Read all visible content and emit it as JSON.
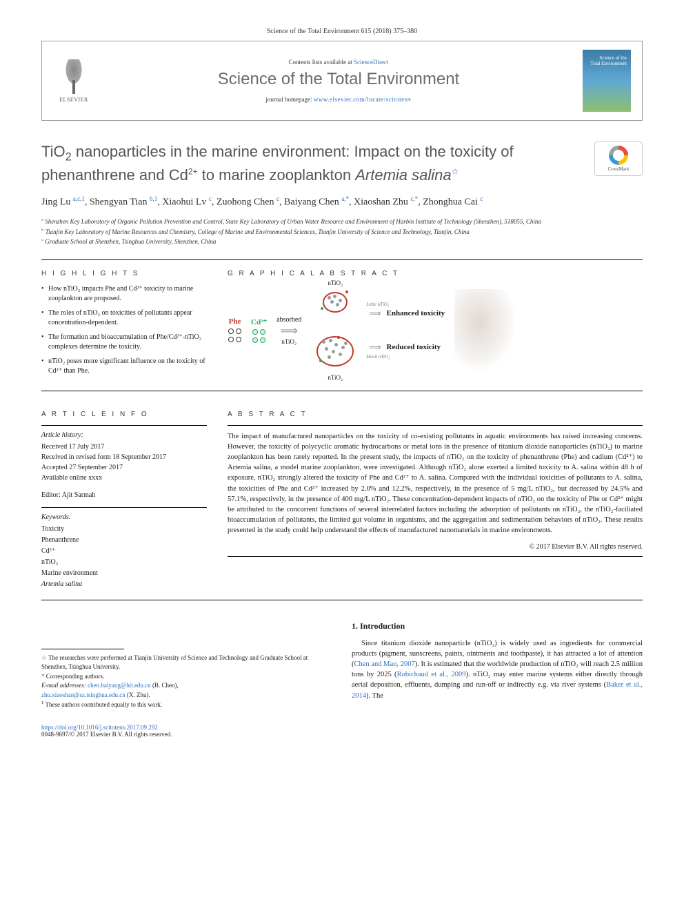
{
  "journal_ref": "Science of the Total Environment 615 (2018) 375–380",
  "header": {
    "contents_prefix": "Contents lists available at ",
    "contents_link": "ScienceDirect",
    "journal_title": "Science of the Total Environment",
    "homepage_prefix": "journal homepage: ",
    "homepage_url": "www.elsevier.com/locate/scitotenv",
    "elsevier_label": "ELSEVIER",
    "cover_line1": "Science of the",
    "cover_line2": "Total Environment",
    "crossmark_label": "CrossMark"
  },
  "title": {
    "line1_pre": "TiO",
    "line1_sub": "2",
    "line1_post": " nanoparticles in the marine environment: Impact on the toxicity of",
    "line2_pre": "phenanthrene and Cd",
    "line2_sup": "2+",
    "line2_post": " to marine zooplankton ",
    "line2_italic": "Artemia salina",
    "star": "☆"
  },
  "authors": [
    {
      "name": "Jing Lu",
      "aff": "a,c,1"
    },
    {
      "name": "Shengyan Tian",
      "aff": "b,1"
    },
    {
      "name": "Xiaohui Lv",
      "aff": "c"
    },
    {
      "name": "Zuohong Chen",
      "aff": "c"
    },
    {
      "name": "Baiyang Chen",
      "aff": "a,*"
    },
    {
      "name": "Xiaoshan Zhu",
      "aff": "c,*"
    },
    {
      "name": "Zhonghua Cai",
      "aff": "c"
    }
  ],
  "affiliations": [
    {
      "key": "a",
      "text": "Shenzhen Key Laboratory of Organic Pollution Prevention and Control, State Key Laboratory of Urban Water Resource and Environment of Harbin Institute of Technology (Shenzhen), 518055, China"
    },
    {
      "key": "b",
      "text": "Tianjin Key Laboratory of Marine Resources and Chemistry, College of Marine and Environmental Sciences, Tianjin University of Science and Technology, Tianjin, China"
    },
    {
      "key": "c",
      "text": "Graduate School at Shenzhen, Tsinghua University, Shenzhen, China"
    }
  ],
  "sections": {
    "highlights": "H I G H L I G H T S",
    "graphical": "G R A P H I C A L  A B S T R A C T",
    "article_info": "A R T I C L E  I N F O",
    "abstract": "A B S T R A C T"
  },
  "highlights": [
    "How nTiO₂ impacts Phe and Cd²⁺ toxicity to marine zooplankton are proposed.",
    "The roles of nTiO₂ on toxicities of pollutants appear concentration-dependent.",
    "The formation and bioaccumulation of Phe/Cd²⁺-nTiO₂ complexes determine the toxicity.",
    "nTiO₂ poses more significant influence on the toxicity of Cd²⁺ than Phe."
  ],
  "graphical_abstract": {
    "phe_label": "Phe",
    "cd_label": "Cd²⁺",
    "absorbed": "absorbed",
    "ntio2_small": "nTiO₂",
    "ntio2_label": "nTiO₂",
    "little_label": "Little nTiO₂",
    "much_label": "Much nTiO₂",
    "enhanced": "Enhanced toxicity",
    "reduced": "Reduced toxicity",
    "colors": {
      "phe": "#c0392b",
      "cd": "#27ae60",
      "ring": "#c0392b",
      "arrow": "#999999",
      "nano_dot": "#9e9e9e"
    }
  },
  "article_info": {
    "history_label": "Article history:",
    "received": "Received 17 July 2017",
    "revised": "Received in revised form 18 September 2017",
    "accepted": "Accepted 27 September 2017",
    "online": "Available online xxxx",
    "editor_label": "Editor: Ajit Sarmah",
    "keywords_label": "Keywords:",
    "keywords": [
      "Toxicity",
      "Phenanthrene",
      "Cd²⁺",
      "nTiO₂",
      "Marine environment",
      "Artemia salina"
    ]
  },
  "abstract": "The impact of manufactured nanoparticles on the toxicity of co-existing pollutants in aquatic environments has raised increasing concerns. However, the toxicity of polycyclic aromatic hydrocarbons or metal ions in the presence of titanium dioxide nanoparticles (nTiO₂) to marine zooplankton has been rarely reported. In the present study, the impacts of nTiO₂ on the toxicity of phenanthrene (Phe) and cadium (Cd²⁺) to Artemia salina, a model marine zooplankton, were investigated. Although nTiO₂ alone exerted a limited toxicity to A. salina within 48 h of exposure, nTiO₂ strongly altered the toxicity of Phe and Cd²⁺ to A. salina. Compared with the individual toxicities of pollutants to A. salina, the toxicities of Phe and Cd²⁺ increased by 2.0% and 12.2%, respectively, in the presence of 5 mg/L nTiO₂, but decreased by 24.5% and 57.1%, respectively, in the presence of 400 mg/L nTiO₂. These concentration-dependent impacts of nTiO₂ on the toxicity of Phe or Cd²⁺ might be attributed to the concurrent functions of several interrelated factors including the adsorption of pollutants on nTiO₂, the nTiO₂-faciliated bioaccumulation of pollutants, the limited gut volume in organisms, and the aggregation and sedimentation behaviors of nTiO₂. These results presented in the study could help understand the effects of manufactured nanomaterials in marine environments.",
  "copyright": "© 2017 Elsevier B.V. All rights reserved.",
  "intro": {
    "heading": "1. Introduction",
    "text_pre": "Since titanium dioxide nanoparticle (nTiO₂) is widely used as ingredients for commercial products (pigment, sunscreens, paints, ointments and toothpaste), it has attracted a lot of attention (",
    "link1": "Chen and Mao, 2007",
    "text_mid1": "). It is estimated that the worldwide production of nTiO₂ will reach 2.5 million tons by 2025 (",
    "link2": "Robichaud et al., 2009",
    "text_mid2": "). nTiO₂ may enter marine systems either directly through aerial deposition, effluents, dumping and run-off or indirectly e.g. via river systems (",
    "link3": "Baker et al., 2014",
    "text_post": "). The"
  },
  "footnotes": {
    "star_note": "The researches were performed at Tianjin University of Science and Technology and Graduate School at Shenzhen, Tsinghua University.",
    "corresponding": "Corresponding authors.",
    "email_label": "E-mail addresses:",
    "email1": "chen.baiyang@hit.edu.cn",
    "email1_who": "(B. Chen),",
    "email2": "zhu.xiaoshan@sz.tsinghua.edu.cn",
    "email2_who": "(X. Zhu).",
    "equal": "These authors contributed equally to this work."
  },
  "footer": {
    "doi": "https://doi.org/10.1016/j.scitotenv.2017.09.292",
    "issn_line": "0048-9697/© 2017 Elsevier B.V. All rights reserved."
  },
  "colors": {
    "link": "#2a6ebb",
    "title_gray": "#545454",
    "journal_gray": "#6b6b6b"
  }
}
